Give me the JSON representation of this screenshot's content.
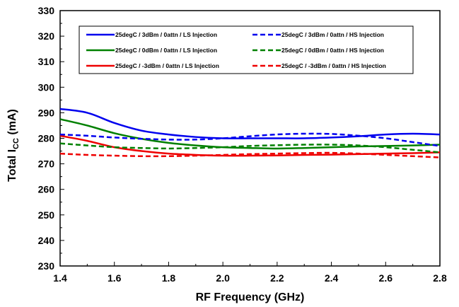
{
  "chart_data": {
    "type": "line",
    "xlabel": "RF Frequency (GHz)",
    "ylabel": {
      "prefix": "Total I",
      "sub": "CC",
      "suffix": " (mA)"
    },
    "xlim": [
      1.4,
      2.8
    ],
    "ylim": [
      230,
      330
    ],
    "xticks": [
      1.4,
      1.6,
      1.8,
      2.0,
      2.2,
      2.4,
      2.6,
      2.8
    ],
    "xtick_labels": [
      "1.4",
      "1.6",
      "1.8",
      "2.0",
      "2.2",
      "2.4",
      "2.6",
      "2.8"
    ],
    "yticks": [
      230,
      240,
      250,
      260,
      270,
      280,
      290,
      300,
      310,
      320,
      330
    ],
    "ytick_labels": [
      "230",
      "240",
      "250",
      "260",
      "270",
      "280",
      "290",
      "300",
      "310",
      "320",
      "330"
    ],
    "grid": false,
    "legend_position": "top",
    "x": [
      1.4,
      1.5,
      1.6,
      1.7,
      1.8,
      1.9,
      2.0,
      2.1,
      2.2,
      2.3,
      2.4,
      2.5,
      2.6,
      2.7,
      2.8
    ],
    "series": [
      {
        "name": "25degC /  3dBm /  0attn /  LS Injection",
        "color": "#0000ee",
        "dash": false,
        "values": [
          291.5,
          290.0,
          286.0,
          283.0,
          281.5,
          280.5,
          280.0,
          280.0,
          280.0,
          280.0,
          280.3,
          280.8,
          281.5,
          281.8,
          281.5
        ]
      },
      {
        "name": "25degC /  3dBm /  0attn /  HS Injection",
        "color": "#0000ee",
        "dash": true,
        "values": [
          281.5,
          281.0,
          280.3,
          279.8,
          279.5,
          279.5,
          280.0,
          280.8,
          281.5,
          281.8,
          281.7,
          281.0,
          280.0,
          278.5,
          277.0
        ]
      },
      {
        "name": "25degC /  0dBm /  0attn /  LS Injection",
        "color": "#008000",
        "dash": false,
        "values": [
          287.5,
          285.0,
          282.0,
          279.8,
          278.2,
          277.2,
          276.5,
          276.2,
          276.0,
          276.2,
          276.5,
          276.8,
          277.0,
          277.2,
          277.5
        ]
      },
      {
        "name": "25degC /  0dBm /  0attn /  HS Injection",
        "color": "#008000",
        "dash": true,
        "values": [
          278.0,
          277.2,
          276.5,
          276.2,
          276.0,
          276.2,
          276.5,
          277.0,
          277.3,
          277.5,
          277.5,
          277.2,
          276.5,
          275.5,
          274.5
        ]
      },
      {
        "name": "25degC /  -3dBm /  0attn /  LS Injection",
        "color": "#ee0000",
        "dash": false,
        "values": [
          281.0,
          279.0,
          276.5,
          275.0,
          274.0,
          273.5,
          273.2,
          273.2,
          273.3,
          273.5,
          273.6,
          273.8,
          274.0,
          274.2,
          274.5
        ]
      },
      {
        "name": "25degC /  -3dBm /  0attn /  HS Injection",
        "color": "#ee0000",
        "dash": true,
        "values": [
          274.0,
          273.5,
          273.2,
          273.0,
          273.0,
          273.2,
          273.5,
          273.8,
          274.0,
          274.2,
          274.3,
          274.0,
          273.5,
          273.0,
          272.5
        ]
      }
    ]
  }
}
